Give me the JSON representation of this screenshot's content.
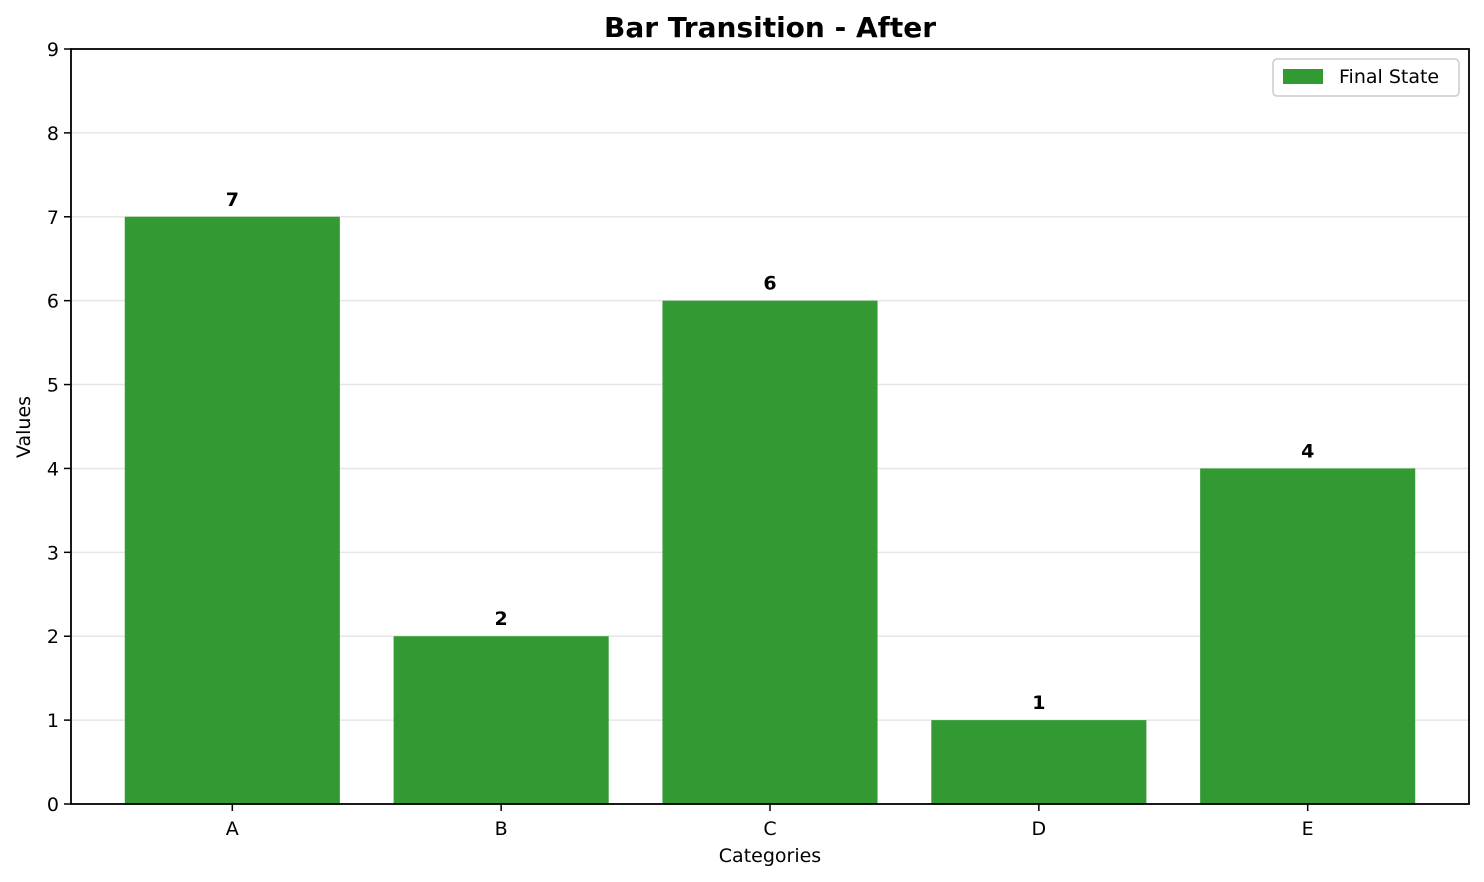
{
  "chart_data": {
    "type": "bar",
    "title": "Bar Transition - After",
    "xlabel": "Categories",
    "ylabel": "Values",
    "categories": [
      "A",
      "B",
      "C",
      "D",
      "E"
    ],
    "series": [
      {
        "name": "Final State",
        "values": [
          7,
          2,
          6,
          1,
          4
        ],
        "color": "#339933"
      }
    ],
    "ylim": [
      0,
      9
    ],
    "yticks": [
      0,
      1,
      2,
      3,
      4,
      5,
      6,
      7,
      8,
      9
    ],
    "grid": "y-axis only",
    "legend_position": "top-right",
    "data_labels": [
      "7",
      "2",
      "6",
      "1",
      "4"
    ]
  }
}
